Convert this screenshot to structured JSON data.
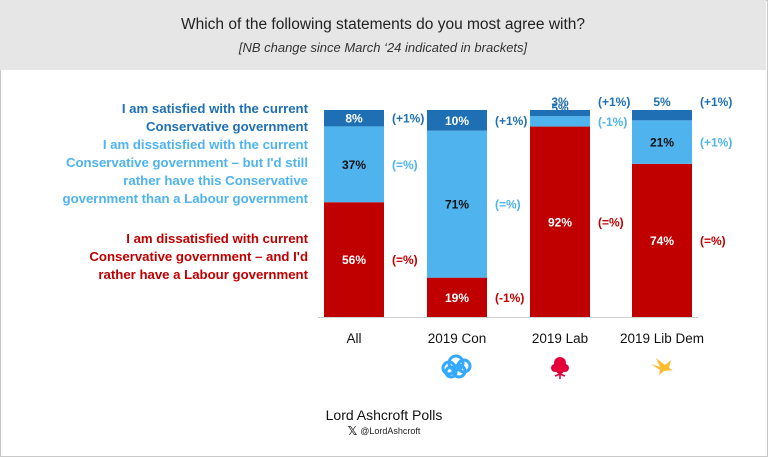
{
  "header": {
    "title": "Which of the following statements do you most agree with?",
    "subtitle": "[NB change since March ‘24 indicated in brackets]"
  },
  "legend": {
    "satisfied": "I am satisfied with the current Conservative government",
    "dissatisfied_con": "I am dissatisfied with the current Conservative government – but I'd still rather have this Conservative government than a Labour government",
    "dissatisfied_lab": "I am dissatisfied with current Conservative government – and I'd rather have a Labour government"
  },
  "colors": {
    "satisfied": "#1f6fb4",
    "dissatisfied_con": "#4fb3ee",
    "dissatisfied_lab": "#c00000",
    "header_bg": "#e6e6e6",
    "con_logo": "#33aaff",
    "lab_logo": "#e4003b",
    "libdem_logo": "#fdbb30"
  },
  "chart_data": {
    "type": "bar",
    "stacked": true,
    "categories": [
      "All",
      "2019 Con",
      "2019 Lab",
      "2019 Lib Dem"
    ],
    "series": [
      {
        "name": "I am dissatisfied with current Conservative government – and I'd rather have a Labour government",
        "values": [
          56,
          19,
          92,
          74
        ],
        "labels": [
          "56%",
          "19%",
          "92%",
          "74%"
        ],
        "changes": [
          "(=%)",
          "(-1%)",
          "(=%)",
          "(=%)"
        ]
      },
      {
        "name": "I am dissatisfied with the current Conservative government – but I'd still rather have this Conservative government than a Labour government",
        "values": [
          37,
          71,
          5,
          21
        ],
        "labels": [
          "37%",
          "71%",
          "5%",
          "21%"
        ],
        "changes": [
          "(=%)",
          "(=%)",
          "(-1%)",
          "(+1%)"
        ]
      },
      {
        "name": "I am satisfied with the current Conservative government",
        "values": [
          8,
          10,
          3,
          5
        ],
        "labels": [
          "8%",
          "10%",
          "3%",
          "5%"
        ],
        "changes": [
          "(+1%)",
          "(+1%)",
          "(+1%)",
          "(+1%)"
        ]
      }
    ],
    "party_logos": [
      "",
      "tree-logo",
      "rose-logo",
      "bird-logo"
    ],
    "ylim": [
      0,
      100
    ]
  },
  "footer": {
    "brand": "Lord Ashcroft Polls",
    "x_icon": "𝕏",
    "handle": "@LordAshcroft"
  }
}
